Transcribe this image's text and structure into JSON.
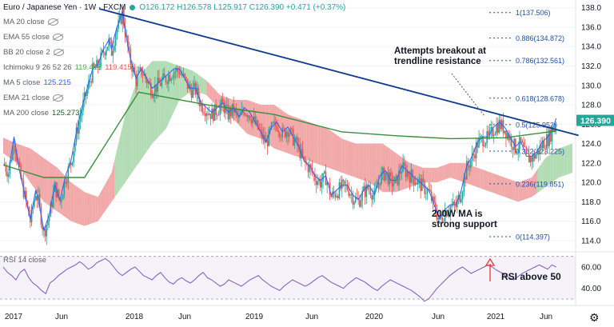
{
  "header": {
    "symbol": "Euro / Japanese Yen · 1W · FXCM",
    "ohlc": "O126.172  H126.578  L125.917  C126.390  +0.471 (+0.37%)"
  },
  "indicators": [
    {
      "label": "MA 20 close",
      "value": "",
      "hidden": true,
      "color": "#5d606b"
    },
    {
      "label": "EMA 55 close",
      "value": "",
      "hidden": true,
      "color": "#5d606b"
    },
    {
      "label": "BB 20 close 2",
      "value": "",
      "hidden": true,
      "color": "#5d606b"
    },
    {
      "label": "Ichimoku 9 26 52 26",
      "value": "119.415",
      "value2": "119.415",
      "hidden": false,
      "color": "#4caf50"
    },
    {
      "label": "MA 5 close",
      "value": "125.215",
      "hidden": false,
      "color": "#2962ff"
    },
    {
      "label": "EMA 21 close",
      "value": "",
      "hidden": true,
      "color": "#5d606b"
    },
    {
      "label": "MA 200 close",
      "value": "125.273",
      "hidden": false,
      "color": "#1b5e20"
    }
  ],
  "annotations": {
    "breakout": "Attempts breakout at\ntrendline resistance",
    "support": "200W MA is\nstrong support",
    "rsi_note": "RSI above 50"
  },
  "rsi": {
    "label": "RSI 14 close",
    "value": "60.05",
    "color": "#7e57c2"
  },
  "colors": {
    "up": "#26a69a",
    "down": "#ef5350",
    "trendline": "#0d3a8c",
    "ma200": "#388e3c",
    "ma5": "#2962ff",
    "kumo_green": "#a5d6a7",
    "kumo_red": "#ef9a9a",
    "fib": "#1e4fa8",
    "rsi": "#7e57c2"
  },
  "chart_data": [
    {
      "type": "candlestick",
      "x_labels": [
        "2017",
        "Jun",
        "2018",
        "Jun",
        "2019",
        "Jun",
        "2020",
        "Jun",
        "Jul",
        "2021",
        "Jun"
      ],
      "ylim": [
        113.0,
        138.8
      ],
      "y_ticks": [
        114.0,
        116.0,
        118.0,
        120.0,
        122.0,
        124.0,
        126.0,
        128.0,
        130.0,
        132.0,
        134.0,
        136.0,
        138.0
      ],
      "last_price": "126.390",
      "fib_levels": [
        {
          "label": "1(137.506)",
          "value": 137.506
        },
        {
          "label": "0.886(134.872)",
          "value": 134.872
        },
        {
          "label": "0.786(132.561)",
          "value": 132.561
        },
        {
          "label": "0.618(128.678)",
          "value": 128.678
        },
        {
          "label": "0.5(125.952)",
          "value": 125.952
        },
        {
          "label": "0.382(123.225)",
          "value": 123.225
        },
        {
          "label": "0.236(119.851)",
          "value": 119.851
        },
        {
          "label": "0(114.397)",
          "value": 114.397
        }
      ],
      "close_path": [
        [
          0,
          122.0
        ],
        [
          4,
          121.0
        ],
        [
          8,
          124.5
        ],
        [
          12,
          121.0
        ],
        [
          16,
          118.5
        ],
        [
          20,
          116.0
        ],
        [
          24,
          119.0
        ],
        [
          26,
          118.0
        ],
        [
          30,
          114.8
        ],
        [
          34,
          116.5
        ],
        [
          38,
          119.5
        ],
        [
          42,
          118.0
        ],
        [
          46,
          120.5
        ],
        [
          50,
          122.0
        ],
        [
          54,
          125.0
        ],
        [
          58,
          127.5
        ],
        [
          62,
          129.5
        ],
        [
          66,
          131.5
        ],
        [
          70,
          132.0
        ],
        [
          74,
          133.5
        ],
        [
          78,
          134.5
        ],
        [
          80,
          133.5
        ],
        [
          83,
          135.5
        ],
        [
          86,
          136.5
        ],
        [
          88,
          137.5
        ],
        [
          90,
          135.5
        ],
        [
          93,
          133.0
        ],
        [
          96,
          131.5
        ],
        [
          98,
          130.5
        ],
        [
          102,
          131.5
        ],
        [
          106,
          130.5
        ],
        [
          110,
          129.5
        ],
        [
          114,
          130.0
        ],
        [
          118,
          130.5
        ],
        [
          122,
          131.0
        ],
        [
          126,
          131.5
        ],
        [
          130,
          131.5
        ],
        [
          134,
          130.5
        ],
        [
          138,
          129.5
        ],
        [
          142,
          129.5
        ],
        [
          146,
          128.0
        ],
        [
          150,
          127.5
        ],
        [
          154,
          127.0
        ],
        [
          158,
          127.5
        ],
        [
          162,
          128.0
        ],
        [
          166,
          127.0
        ],
        [
          170,
          127.5
        ],
        [
          174,
          126.5
        ],
        [
          178,
          127.5
        ],
        [
          182,
          127.0
        ],
        [
          186,
          126.0
        ],
        [
          190,
          125.0
        ],
        [
          194,
          124.0
        ],
        [
          198,
          125.5
        ],
        [
          202,
          126.0
        ],
        [
          206,
          125.0
        ],
        [
          210,
          125.5
        ],
        [
          214,
          124.5
        ],
        [
          218,
          123.5
        ],
        [
          222,
          122.0
        ],
        [
          226,
          121.5
        ],
        [
          230,
          120.5
        ],
        [
          234,
          120.0
        ],
        [
          238,
          120.5
        ],
        [
          242,
          118.5
        ],
        [
          246,
          119.0
        ],
        [
          250,
          119.5
        ],
        [
          254,
          119.5
        ],
        [
          258,
          118.5
        ],
        [
          262,
          118.0
        ],
        [
          266,
          119.0
        ],
        [
          270,
          119.5
        ],
        [
          274,
          118.5
        ],
        [
          278,
          120.5
        ],
        [
          282,
          121.0
        ],
        [
          286,
          120.0
        ],
        [
          290,
          120.0
        ],
        [
          294,
          121.5
        ],
        [
          298,
          121.0
        ],
        [
          302,
          120.5
        ],
        [
          306,
          120.0
        ],
        [
          310,
          119.5
        ],
        [
          314,
          119.0
        ],
        [
          318,
          117.5
        ],
        [
          322,
          116.0
        ],
        [
          326,
          117.0
        ],
        [
          330,
          117.5
        ],
        [
          334,
          117.5
        ],
        [
          338,
          119.0
        ],
        [
          342,
          121.5
        ],
        [
          346,
          122.5
        ],
        [
          350,
          124.0
        ],
        [
          354,
          124.5
        ],
        [
          358,
          124.5
        ],
        [
          362,
          125.5
        ],
        [
          366,
          126.0
        ],
        [
          370,
          125.5
        ],
        [
          374,
          124.5
        ],
        [
          378,
          123.5
        ],
        [
          382,
          124.0
        ],
        [
          386,
          122.5
        ],
        [
          390,
          122.5
        ],
        [
          394,
          123.0
        ],
        [
          398,
          124.0
        ],
        [
          402,
          124.5
        ],
        [
          406,
          125.5
        ],
        [
          408,
          126.4
        ]
      ],
      "ma200": [
        [
          0,
          121.8
        ],
        [
          30,
          120.5
        ],
        [
          60,
          120.5
        ],
        [
          100,
          129.3
        ],
        [
          150,
          128.0
        ],
        [
          200,
          127.0
        ],
        [
          250,
          125.2
        ],
        [
          290,
          124.8
        ],
        [
          330,
          124.5
        ],
        [
          370,
          124.6
        ],
        [
          408,
          125.3
        ]
      ],
      "trendline": [
        [
          0,
          140.5
        ],
        [
          408,
          125.5
        ]
      ],
      "kumo": {
        "upper": [
          [
            0,
            124.6
          ],
          [
            10,
            124.0
          ],
          [
            20,
            123.5
          ],
          [
            30,
            122.5
          ],
          [
            40,
            121.5
          ],
          [
            50,
            120.0
          ],
          [
            60,
            119.0
          ],
          [
            70,
            118.5
          ],
          [
            80,
            121.0
          ],
          [
            90,
            127.0
          ],
          [
            100,
            131.0
          ],
          [
            110,
            132.5
          ],
          [
            120,
            132.5
          ],
          [
            130,
            132.0
          ],
          [
            140,
            131.5
          ],
          [
            150,
            130.5
          ],
          [
            160,
            129.0
          ],
          [
            170,
            128.5
          ],
          [
            180,
            128.5
          ],
          [
            190,
            128.0
          ],
          [
            200,
            128.0
          ],
          [
            210,
            127.0
          ],
          [
            220,
            126.5
          ],
          [
            230,
            126.0
          ],
          [
            240,
            125.5
          ],
          [
            250,
            124.5
          ],
          [
            260,
            124.0
          ],
          [
            270,
            124.0
          ],
          [
            280,
            124.0
          ],
          [
            290,
            123.0
          ],
          [
            300,
            122.0
          ],
          [
            310,
            121.5
          ],
          [
            320,
            121.5
          ],
          [
            330,
            122.0
          ],
          [
            340,
            122.0
          ],
          [
            350,
            121.5
          ],
          [
            360,
            121.0
          ],
          [
            370,
            120.5
          ],
          [
            380,
            120.0
          ],
          [
            390,
            120.5
          ],
          [
            400,
            122.5
          ],
          [
            410,
            123.5
          ],
          [
            420,
            124.0
          ]
        ],
        "lower": [
          [
            0,
            123.0
          ],
          [
            10,
            122.0
          ],
          [
            20,
            120.0
          ],
          [
            30,
            118.0
          ],
          [
            40,
            117.0
          ],
          [
            50,
            116.0
          ],
          [
            60,
            115.5
          ],
          [
            70,
            116.0
          ],
          [
            80,
            118.0
          ],
          [
            90,
            120.0
          ],
          [
            100,
            122.0
          ],
          [
            110,
            124.0
          ],
          [
            120,
            125.5
          ],
          [
            130,
            128.5
          ],
          [
            140,
            129.5
          ],
          [
            150,
            129.0
          ],
          [
            160,
            127.5
          ],
          [
            170,
            126.5
          ],
          [
            180,
            125.0
          ],
          [
            190,
            124.5
          ],
          [
            200,
            123.5
          ],
          [
            210,
            123.0
          ],
          [
            220,
            122.5
          ],
          [
            230,
            122.0
          ],
          [
            240,
            121.5
          ],
          [
            250,
            121.0
          ],
          [
            260,
            120.5
          ],
          [
            270,
            120.0
          ],
          [
            280,
            119.0
          ],
          [
            290,
            119.0
          ],
          [
            300,
            119.5
          ],
          [
            310,
            120.0
          ],
          [
            320,
            120.0
          ],
          [
            330,
            120.5
          ],
          [
            340,
            120.0
          ],
          [
            350,
            119.5
          ],
          [
            360,
            119.0
          ],
          [
            370,
            118.5
          ],
          [
            380,
            118.0
          ],
          [
            390,
            118.5
          ],
          [
            400,
            119.5
          ],
          [
            410,
            120.5
          ],
          [
            420,
            121.0
          ]
        ]
      }
    },
    {
      "type": "line",
      "title": "RSI 14 close",
      "ylim": [
        24,
        72
      ],
      "y_ticks": [
        40.0,
        60.0
      ],
      "bands": [
        30,
        70
      ],
      "values": [
        60,
        55,
        52,
        48,
        55,
        58,
        50,
        45,
        42,
        38,
        35,
        45,
        48,
        52,
        55,
        58,
        60,
        62,
        65,
        62,
        58,
        60,
        64,
        66,
        68,
        65,
        60,
        55,
        52,
        55,
        58,
        60,
        56,
        52,
        50,
        48,
        52,
        55,
        50,
        46,
        44,
        48,
        50,
        47,
        45,
        48,
        52,
        55,
        50,
        48,
        45,
        42,
        44,
        48,
        46,
        44,
        42,
        45,
        48,
        50,
        52,
        48,
        45,
        42,
        40,
        38,
        42,
        45,
        48,
        46,
        44,
        42,
        44,
        47,
        50,
        52,
        49,
        46,
        44,
        42,
        40,
        44,
        47,
        50,
        48,
        46,
        43,
        40,
        38,
        42,
        45,
        48,
        46,
        44,
        42,
        40,
        38,
        35,
        32,
        28,
        30,
        35,
        40,
        44,
        48,
        52,
        55,
        58,
        60,
        57,
        54,
        56,
        58,
        60,
        62,
        60,
        57,
        55,
        52,
        50,
        48,
        51,
        54,
        56,
        58,
        60,
        62,
        60,
        58,
        62,
        60
      ]
    }
  ]
}
